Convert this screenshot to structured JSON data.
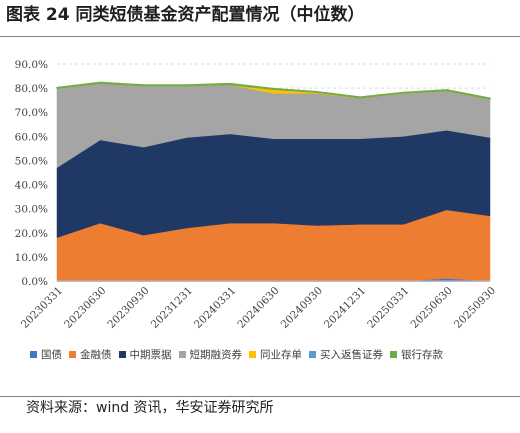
{
  "title": "图表 24 同类短债基金资产配置情况（中位数）",
  "source": "资料来源：wind 资讯，华安证券研究所",
  "cutoff_text": "",
  "chart_data": {
    "type": "area",
    "stacked": true,
    "x": [
      "20230331",
      "20230630",
      "20230930",
      "20231231",
      "20240331",
      "20240630",
      "20240930",
      "20241231",
      "20250331",
      "20250630",
      "20250930"
    ],
    "y_ticks": [
      "0.0%",
      "10.0%",
      "20.0%",
      "30.0%",
      "40.0%",
      "50.0%",
      "60.0%",
      "70.0%",
      "80.0%",
      "90.0%"
    ],
    "ylim": [
      0,
      90
    ],
    "grid": "dashed horizontal",
    "legend_position": "bottom",
    "series": [
      {
        "name": "国债",
        "color": "#4472c4",
        "values": [
          0,
          0,
          0,
          0,
          0,
          0,
          0,
          0,
          0,
          1.0,
          0
        ]
      },
      {
        "name": "金融债",
        "color": "#ed7d31",
        "values": [
          18,
          24,
          19,
          22,
          24,
          24,
          23,
          23.5,
          23.5,
          28.5,
          27
        ]
      },
      {
        "name": "中期票据",
        "color": "#203864",
        "values": [
          29,
          34.5,
          36.5,
          37.5,
          37,
          35,
          36,
          35.5,
          36.5,
          33,
          32.5
        ]
      },
      {
        "name": "短期融资券",
        "color": "#a5a5a5",
        "values": [
          33,
          23.5,
          25.5,
          21.5,
          20.5,
          19,
          19,
          17,
          18,
          16.5,
          16
        ]
      },
      {
        "name": "同业存单",
        "color": "#ffc000",
        "values": [
          0,
          0,
          0,
          0,
          0,
          1.5,
          0.3,
          0,
          0,
          0,
          0
        ]
      },
      {
        "name": "买入返售证券",
        "color": "#5b9bd5",
        "values": [
          0,
          0,
          0,
          0,
          0,
          0,
          0,
          0,
          0,
          0,
          0
        ]
      },
      {
        "name": "银行存款",
        "color": "#70ad47",
        "values": [
          0.2,
          0.4,
          0.3,
          0.3,
          0.4,
          0.3,
          0.2,
          0.3,
          0.2,
          0.3,
          0.3
        ]
      }
    ]
  }
}
